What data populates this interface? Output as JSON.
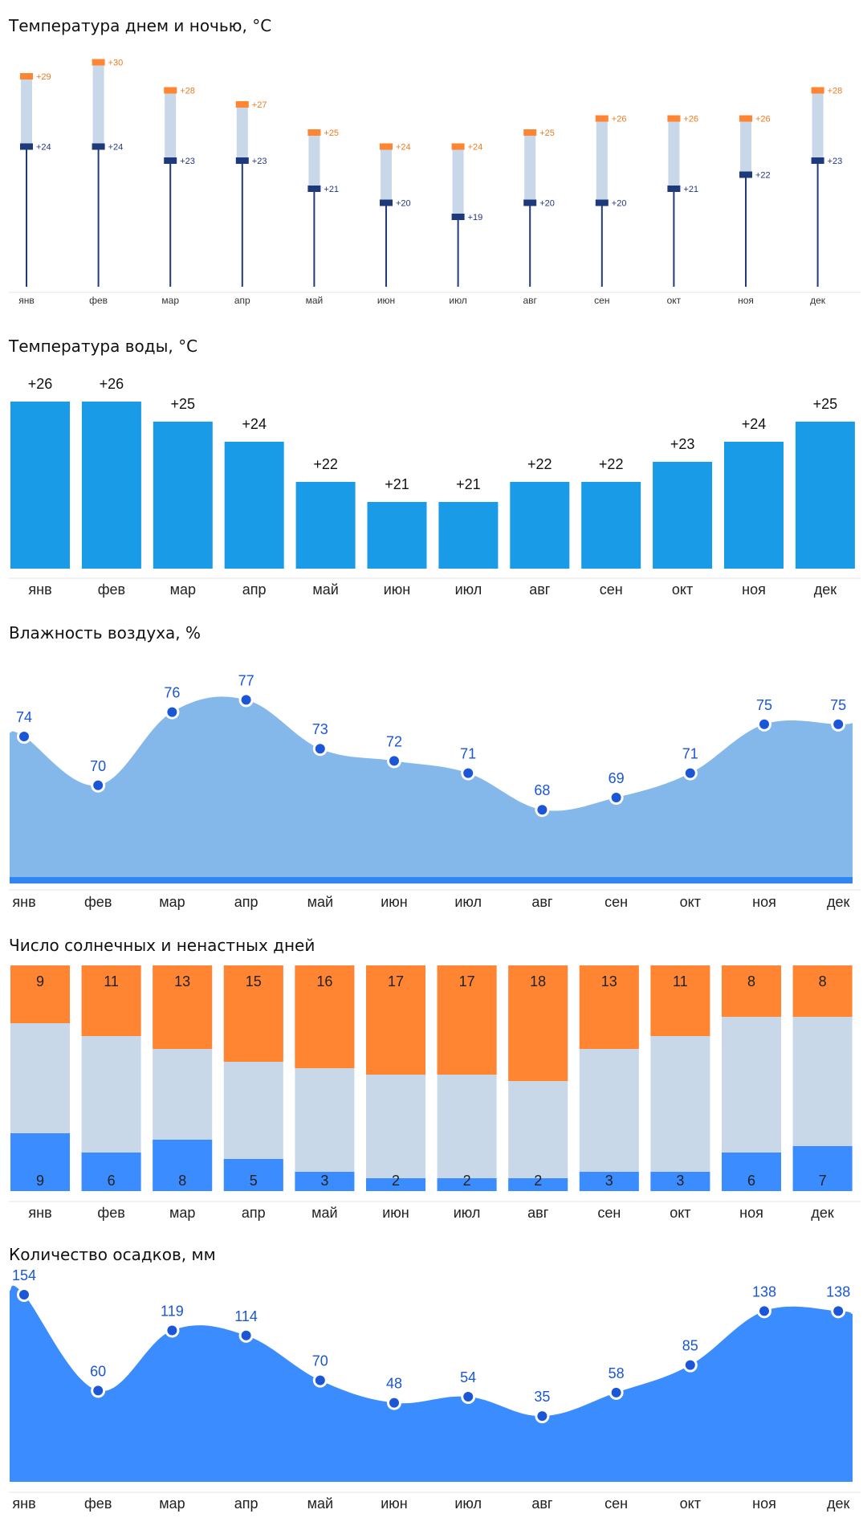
{
  "months": [
    "янв",
    "фев",
    "мар",
    "апр",
    "май",
    "июн",
    "июл",
    "авг",
    "сен",
    "окт",
    "ноя",
    "дек"
  ],
  "colors": {
    "orange": "#ff8533",
    "navy": "#1f3a7a",
    "pale": "#c8d8e8",
    "water": "#1a9be8",
    "humid": "#85b8ea",
    "humid_dark": "#2f86f0",
    "rain": "#3a8cff",
    "dot": "#1a56d6",
    "label_blue": "#1a56d6",
    "label_navy": "#23357f",
    "label_orange": "#f07a1e"
  },
  "sections": {
    "temp_title": "Температура днем и ночью, °С",
    "water_title": "Температура воды, °С",
    "humidity_title": "Влажность воздуха, %",
    "sunny_title": "Число солнечных и ненастных дней",
    "precip_title": "Количество осадков, мм"
  },
  "chart_data": [
    {
      "type": "bar",
      "id": "day-night-temp",
      "title": "Температура днем и ночью, °С",
      "categories": [
        "янв",
        "фев",
        "мар",
        "апр",
        "май",
        "июн",
        "июл",
        "авг",
        "сен",
        "окт",
        "ноя",
        "дек"
      ],
      "series": [
        {
          "name": "day",
          "values": [
            29,
            30,
            28,
            27,
            25,
            24,
            24,
            25,
            26,
            26,
            26,
            28
          ],
          "labels": [
            "+29",
            "+30",
            "+28",
            "+27",
            "+25",
            "+24",
            "+24",
            "+25",
            "+26",
            "+26",
            "+26",
            "+28"
          ]
        },
        {
          "name": "night",
          "values": [
            24,
            24,
            23,
            23,
            21,
            20,
            19,
            20,
            20,
            21,
            22,
            23
          ],
          "labels": [
            "+24",
            "+24",
            "+23",
            "+23",
            "+21",
            "+20",
            "+19",
            "+20",
            "+20",
            "+21",
            "+22",
            "+23"
          ]
        }
      ]
    },
    {
      "type": "bar",
      "id": "water-temp",
      "title": "Температура воды, °С",
      "categories": [
        "янв",
        "фев",
        "мар",
        "апр",
        "май",
        "июн",
        "июл",
        "авг",
        "сен",
        "окт",
        "ноя",
        "дек"
      ],
      "values": [
        26,
        26,
        25,
        24,
        22,
        21,
        21,
        22,
        22,
        23,
        24,
        25
      ],
      "labels": [
        "+26",
        "+26",
        "+25",
        "+24",
        "+22",
        "+21",
        "+21",
        "+22",
        "+22",
        "+23",
        "+24",
        "+25"
      ]
    },
    {
      "type": "area",
      "id": "humidity",
      "title": "Влажность воздуха, %",
      "categories": [
        "янв",
        "фев",
        "мар",
        "апр",
        "май",
        "июн",
        "июл",
        "авг",
        "сен",
        "окт",
        "ноя",
        "дек"
      ],
      "values": [
        74,
        70,
        76,
        77,
        73,
        72,
        71,
        68,
        69,
        71,
        75,
        75
      ]
    },
    {
      "type": "bar",
      "id": "sunny-days",
      "title": "Число солнечных и ненастных дней",
      "categories": [
        "янв",
        "фев",
        "мар",
        "апр",
        "май",
        "июн",
        "июл",
        "авг",
        "сен",
        "окт",
        "ноя",
        "дек"
      ],
      "series": [
        {
          "name": "sunny",
          "values": [
            9,
            11,
            13,
            15,
            16,
            17,
            17,
            18,
            13,
            11,
            8,
            8
          ]
        },
        {
          "name": "rainy",
          "values": [
            9,
            6,
            8,
            5,
            3,
            2,
            2,
            2,
            3,
            3,
            6,
            7
          ]
        }
      ]
    },
    {
      "type": "area",
      "id": "precipitation",
      "title": "Количество осадков, мм",
      "categories": [
        "янв",
        "фев",
        "мар",
        "апр",
        "май",
        "июн",
        "июл",
        "авг",
        "сен",
        "окт",
        "ноя",
        "дек"
      ],
      "values": [
        154,
        60,
        119,
        114,
        70,
        48,
        54,
        35,
        58,
        85,
        138,
        138
      ]
    }
  ]
}
